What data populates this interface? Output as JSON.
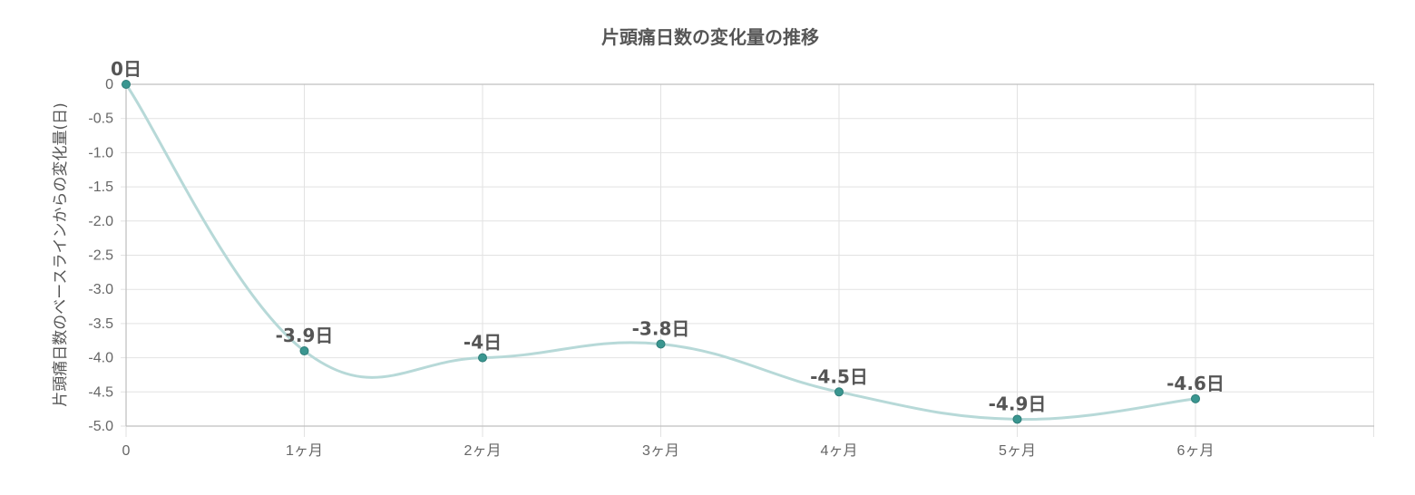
{
  "chart_data": {
    "type": "line",
    "title": "片頭痛日数の変化量の推移",
    "xlabel": "",
    "ylabel": "片頭痛日数のベースラインからの変化量(日)",
    "categories": [
      "0",
      "1ヶ月",
      "2ヶ月",
      "3ヶ月",
      "4ヶ月",
      "5ヶ月",
      "6ヶ月"
    ],
    "series": [
      {
        "values": [
          0,
          -3.9,
          -4,
          -3.8,
          -4.5,
          -4.9,
          -4.6
        ],
        "data_labels": [
          "0日",
          "-3.9日",
          "-4日",
          "-3.8日",
          "-4.5日",
          "-4.9日",
          "-4.6日"
        ]
      }
    ],
    "y_ticks": [
      "0",
      "-0.5",
      "-1.0",
      "-1.5",
      "-2.0",
      "-2.5",
      "-3.0",
      "-3.5",
      "-4.0",
      "-4.5",
      "-5.0"
    ],
    "ylim": [
      -5,
      0
    ],
    "grid": true,
    "legend": "none",
    "colors": {
      "line": "#b7d9d8",
      "point": "#3a9690",
      "grid": "#e2e2e2",
      "axis": "#bfbfbf"
    }
  }
}
